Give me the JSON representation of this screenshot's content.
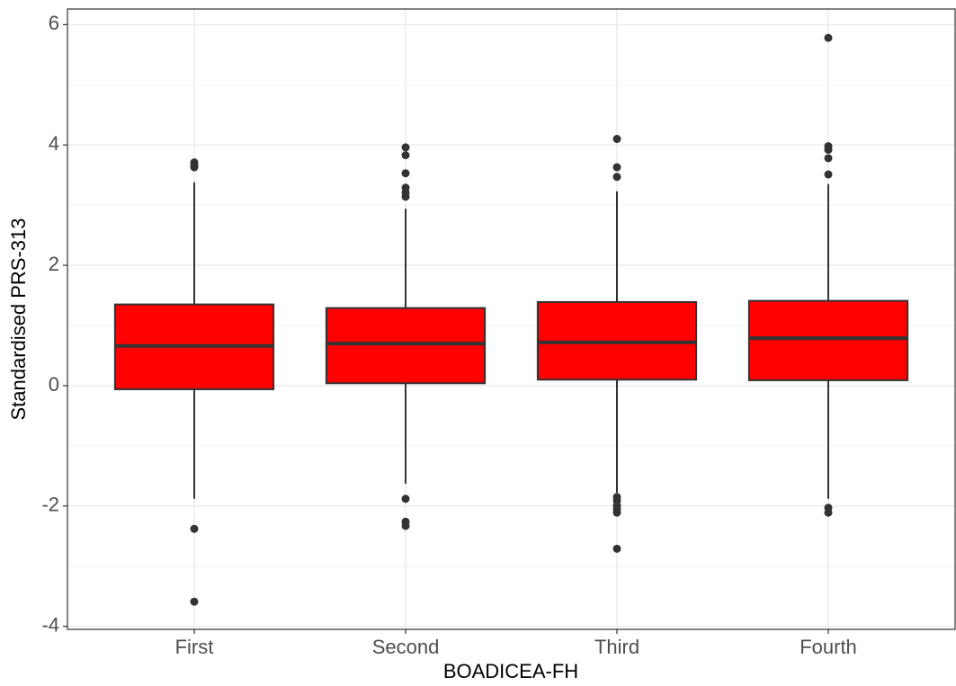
{
  "chart_data": {
    "type": "box",
    "x_label": "BOADICEA-FH",
    "y_label": "Standardised PRS-313",
    "categories": [
      "First",
      "Second",
      "Third",
      "Fourth"
    ],
    "fill": "#ff0000",
    "line_color": "#333333",
    "boxes": [
      {
        "whisker_low": -1.88,
        "q1": -0.06,
        "median": 0.66,
        "q3": 1.35,
        "whisker_high": 3.38,
        "outliers": [
          3.71,
          3.66,
          3.63,
          -2.38,
          -3.59
        ]
      },
      {
        "whisker_low": -1.63,
        "q1": 0.04,
        "median": 0.7,
        "q3": 1.29,
        "whisker_high": 2.94,
        "outliers": [
          3.96,
          3.83,
          3.53,
          3.29,
          3.21,
          3.14,
          -1.88,
          -2.26,
          -2.33
        ]
      },
      {
        "whisker_low": -1.78,
        "q1": 0.1,
        "median": 0.72,
        "q3": 1.39,
        "whisker_high": 3.23,
        "outliers": [
          4.1,
          3.63,
          3.47,
          -1.85,
          -1.91,
          -1.99,
          -2.05,
          -2.11,
          -2.71
        ]
      },
      {
        "whisker_low": -1.88,
        "q1": 0.09,
        "median": 0.79,
        "q3": 1.41,
        "whisker_high": 3.35,
        "outliers": [
          5.78,
          3.98,
          3.92,
          3.78,
          3.51,
          -2.03,
          -2.11
        ]
      }
    ],
    "ylim": [
      -4.05,
      6.26
    ],
    "yticks": [
      -4,
      -2,
      0,
      2,
      4,
      6
    ],
    "grid": true
  }
}
